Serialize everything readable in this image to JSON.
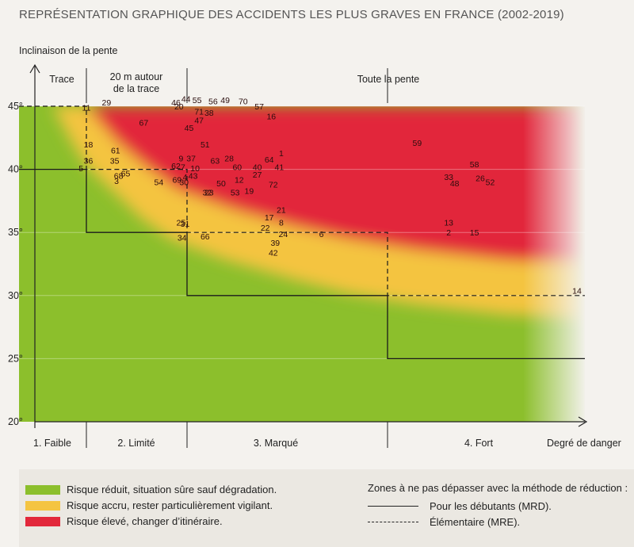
{
  "title": "REPRÉSENTATION GRAPHIQUE DES ACCIDENTS LES PLUS GRAVES EN FRANCE (2002-2019)",
  "colors": {
    "green": "#8cbf2c",
    "yellow": "#f4c441",
    "red": "#e2283b",
    "background": "#f4f2ee"
  },
  "chart_data": {
    "type": "scatter",
    "title": "REPRÉSENTATION GRAPHIQUE DES ACCIDENTS LES PLUS GRAVES EN FRANCE (2002-2019)",
    "ylabel": "Inclinaison de la pente",
    "xlabel": "Degré de danger",
    "ylim": [
      20,
      45
    ],
    "y_ticks": [
      "20°",
      "25°",
      "30°",
      "35°",
      "40°",
      "45°"
    ],
    "x_categories": [
      "1. Faible",
      "2. Limité",
      "3. Marqué",
      "4. Fort"
    ],
    "zone_headers": [
      "Trace",
      "20 m autour de la trace",
      "Toute la pente"
    ],
    "zone_headers_lines": [
      [
        "Trace"
      ],
      [
        "20 m autour",
        "de la trace"
      ],
      [
        "Toute la pente"
      ]
    ],
    "grid": true,
    "mrd_limits": [
      40,
      35,
      30,
      25
    ],
    "mre_limits": [
      45,
      40,
      35,
      30
    ],
    "points": [
      {
        "label": "1",
        "x": 2.97,
        "y": 41.3
      },
      {
        "label": "2",
        "x": 3.81,
        "y": 35.0
      },
      {
        "label": "3",
        "x": 1.8,
        "y": 39.1
      },
      {
        "label": "4",
        "x": 2.48,
        "y": 39.4
      },
      {
        "label": "5",
        "x": 1.42,
        "y": 40.1
      },
      {
        "label": "6",
        "x": 3.17,
        "y": 34.9
      },
      {
        "label": "7",
        "x": 2.46,
        "y": 40.2
      },
      {
        "label": "8",
        "x": 2.97,
        "y": 35.8
      },
      {
        "label": "9",
        "x": 2.44,
        "y": 40.9
      },
      {
        "label": "10",
        "x": 2.54,
        "y": 40.1
      },
      {
        "label": "11",
        "x": 1.5,
        "y": 44.9
      },
      {
        "label": "12",
        "x": 2.76,
        "y": 39.2
      },
      {
        "label": "13",
        "x": 3.81,
        "y": 35.8
      },
      {
        "label": "14",
        "x": 4.46,
        "y": 30.4
      },
      {
        "label": "15",
        "x": 3.94,
        "y": 35.0
      },
      {
        "label": "16",
        "x": 2.92,
        "y": 44.2
      },
      {
        "label": "17",
        "x": 2.91,
        "y": 36.2
      },
      {
        "label": "18",
        "x": 1.52,
        "y": 42.0
      },
      {
        "label": "19",
        "x": 2.81,
        "y": 38.3
      },
      {
        "label": "20",
        "x": 2.42,
        "y": 45.0
      },
      {
        "label": "21",
        "x": 2.97,
        "y": 36.8
      },
      {
        "label": "22",
        "x": 2.89,
        "y": 35.4
      },
      {
        "label": "23",
        "x": 2.61,
        "y": 38.2
      },
      {
        "label": "24",
        "x": 2.98,
        "y": 34.9
      },
      {
        "label": "25",
        "x": 2.44,
        "y": 35.8
      },
      {
        "label": "26",
        "x": 3.97,
        "y": 39.3
      },
      {
        "label": "27",
        "x": 2.85,
        "y": 39.6
      },
      {
        "label": "28",
        "x": 2.71,
        "y": 40.9
      },
      {
        "label": "29",
        "x": 1.7,
        "y": 45.3
      },
      {
        "label": "30",
        "x": 2.47,
        "y": 39.0
      },
      {
        "label": "31",
        "x": 2.48,
        "y": 35.7
      },
      {
        "label": "32",
        "x": 2.6,
        "y": 38.2
      },
      {
        "label": "33",
        "x": 3.81,
        "y": 39.4
      },
      {
        "label": "34",
        "x": 2.45,
        "y": 34.6
      },
      {
        "label": "35",
        "x": 1.78,
        "y": 40.7
      },
      {
        "label": "36",
        "x": 1.52,
        "y": 40.7
      },
      {
        "label": "37",
        "x": 2.52,
        "y": 40.9
      },
      {
        "label": "38",
        "x": 2.61,
        "y": 44.5
      },
      {
        "label": "39",
        "x": 2.94,
        "y": 34.2
      },
      {
        "label": "40",
        "x": 2.85,
        "y": 40.2
      },
      {
        "label": "41",
        "x": 2.96,
        "y": 40.2
      },
      {
        "label": "42",
        "x": 2.93,
        "y": 33.4
      },
      {
        "label": "43",
        "x": 2.53,
        "y": 39.5
      },
      {
        "label": "44",
        "x": 2.49,
        "y": 45.6
      },
      {
        "label": "45",
        "x": 2.51,
        "y": 43.3
      },
      {
        "label": "46",
        "x": 2.39,
        "y": 45.3
      },
      {
        "label": "47",
        "x": 2.56,
        "y": 43.9
      },
      {
        "label": "48",
        "x": 3.84,
        "y": 38.9
      },
      {
        "label": "49",
        "x": 2.69,
        "y": 45.5
      },
      {
        "label": "50",
        "x": 2.67,
        "y": 38.9
      },
      {
        "label": "51",
        "x": 2.59,
        "y": 42.0
      },
      {
        "label": "52",
        "x": 4.02,
        "y": 39.0
      },
      {
        "label": "53",
        "x": 2.74,
        "y": 38.2
      },
      {
        "label": "54",
        "x": 2.22,
        "y": 39.0
      },
      {
        "label": "55",
        "x": 2.55,
        "y": 45.5
      },
      {
        "label": "56",
        "x": 2.63,
        "y": 45.4
      },
      {
        "label": "57",
        "x": 2.86,
        "y": 45.0
      },
      {
        "label": "58",
        "x": 3.94,
        "y": 40.4
      },
      {
        "label": "59",
        "x": 3.65,
        "y": 42.1
      },
      {
        "label": "60",
        "x": 2.75,
        "y": 40.2
      },
      {
        "label": "61",
        "x": 1.79,
        "y": 41.5
      },
      {
        "label": "62",
        "x": 2.39,
        "y": 40.3
      },
      {
        "label": "63",
        "x": 2.64,
        "y": 40.7
      },
      {
        "label": "64",
        "x": 2.91,
        "y": 40.8
      },
      {
        "label": "65",
        "x": 1.89,
        "y": 39.7
      },
      {
        "label": "66",
        "x": 2.59,
        "y": 34.7
      },
      {
        "label": "67",
        "x": 2.07,
        "y": 43.7
      },
      {
        "label": "68",
        "x": 1.82,
        "y": 39.5
      },
      {
        "label": "69",
        "x": 2.4,
        "y": 39.2
      },
      {
        "label": "70",
        "x": 2.78,
        "y": 45.4
      },
      {
        "label": "71",
        "x": 2.56,
        "y": 44.6
      },
      {
        "label": "72",
        "x": 2.93,
        "y": 38.8
      }
    ]
  },
  "legend": {
    "risk_items": [
      {
        "label": "Risque réduit, situation sûre sauf dégradation.",
        "color": "#8cbf2c"
      },
      {
        "label": "Risque accru, rester particulièrement vigilant.",
        "color": "#f4c441"
      },
      {
        "label": "Risque élevé, changer d’itinéraire.",
        "color": "#e2283b"
      }
    ],
    "method_title": "Zones à ne pas dépasser avec la méthode de réduction :",
    "method_items": [
      {
        "label": "Pour les débutants (MRD).",
        "style": "solid"
      },
      {
        "label": "Élémentaire (MRE).",
        "style": "dashed"
      }
    ]
  }
}
